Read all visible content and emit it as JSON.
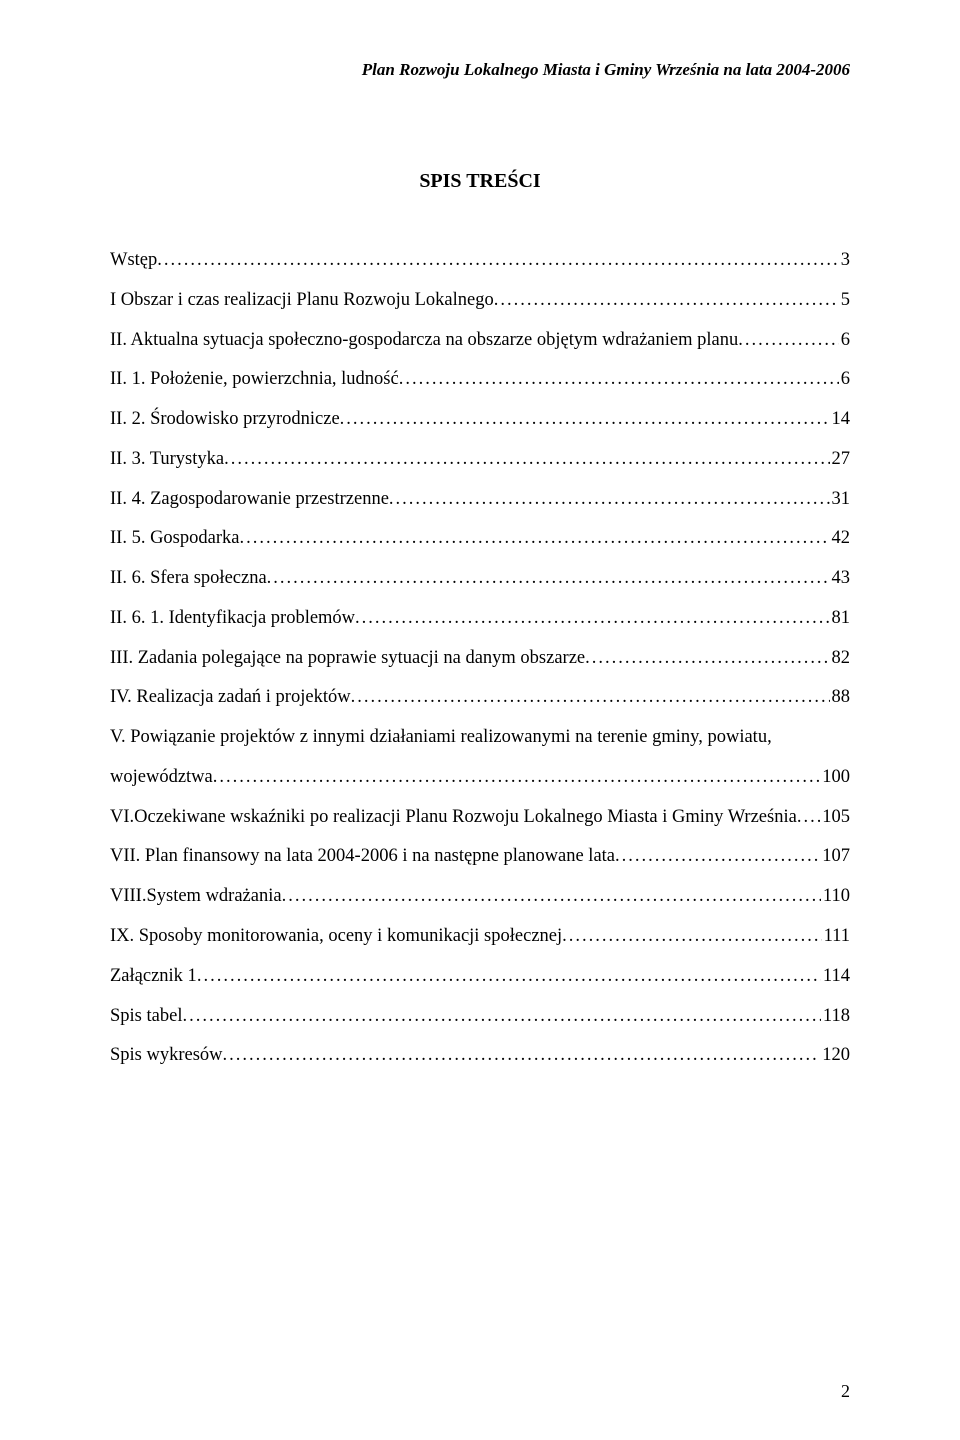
{
  "header": {
    "running_title": "Plan Rozwoju Lokalnego Miasta i Gminy Września na lata 2004-2006"
  },
  "title": "SPIS TREŚCI",
  "toc": [
    {
      "label": "Wstęp",
      "page": "3"
    },
    {
      "label": "I Obszar i czas realizacji Planu Rozwoju Lokalnego",
      "page": "5"
    },
    {
      "label": "II. Aktualna sytuacja społeczno-gospodarcza na obszarze objętym wdrażaniem planu",
      "page": "6"
    },
    {
      "label": "II. 1. Położenie, powierzchnia, ludność",
      "page": "6"
    },
    {
      "label": "II. 2. Środowisko przyrodnicze",
      "page": "14"
    },
    {
      "label": "II. 3. Turystyka",
      "page": "27"
    },
    {
      "label": "II. 4. Zagospodarowanie przestrzenne",
      "page": "31"
    },
    {
      "label": "II. 5. Gospodarka",
      "page": "42"
    },
    {
      "label": "II. 6. Sfera społeczna",
      "page": "43"
    },
    {
      "label": "II. 6. 1. Identyfikacja problemów",
      "page": "81"
    },
    {
      "label": "III. Zadania polegające na poprawie sytuacji na danym obszarze",
      "page": "82"
    },
    {
      "label": "IV. Realizacja zadań i projektów",
      "page": "88"
    }
  ],
  "toc_v": {
    "line1": "V. Powiązanie projektów z innymi działaniami realizowanymi na terenie gminy, powiatu,",
    "line2": "województwa",
    "page": "100"
  },
  "toc_after": [
    {
      "label": "VI.Oczekiwane wskaźniki po realizacji Planu Rozwoju Lokalnego Miasta i Gminy Września",
      "page": "105"
    },
    {
      "label": "VII. Plan finansowy na lata 2004-2006 i na następne planowane lata",
      "page": "107"
    },
    {
      "label": "VIII.System wdrażania",
      "page": "110"
    },
    {
      "label": "IX. Sposoby monitorowania, oceny i komunikacji społecznej",
      "page": "111"
    },
    {
      "label": "Załącznik 1",
      "page": "114"
    },
    {
      "label": "Spis tabel",
      "page": "118"
    },
    {
      "label": "Spis wykresów",
      "page": "120"
    }
  ],
  "page_number": "2"
}
